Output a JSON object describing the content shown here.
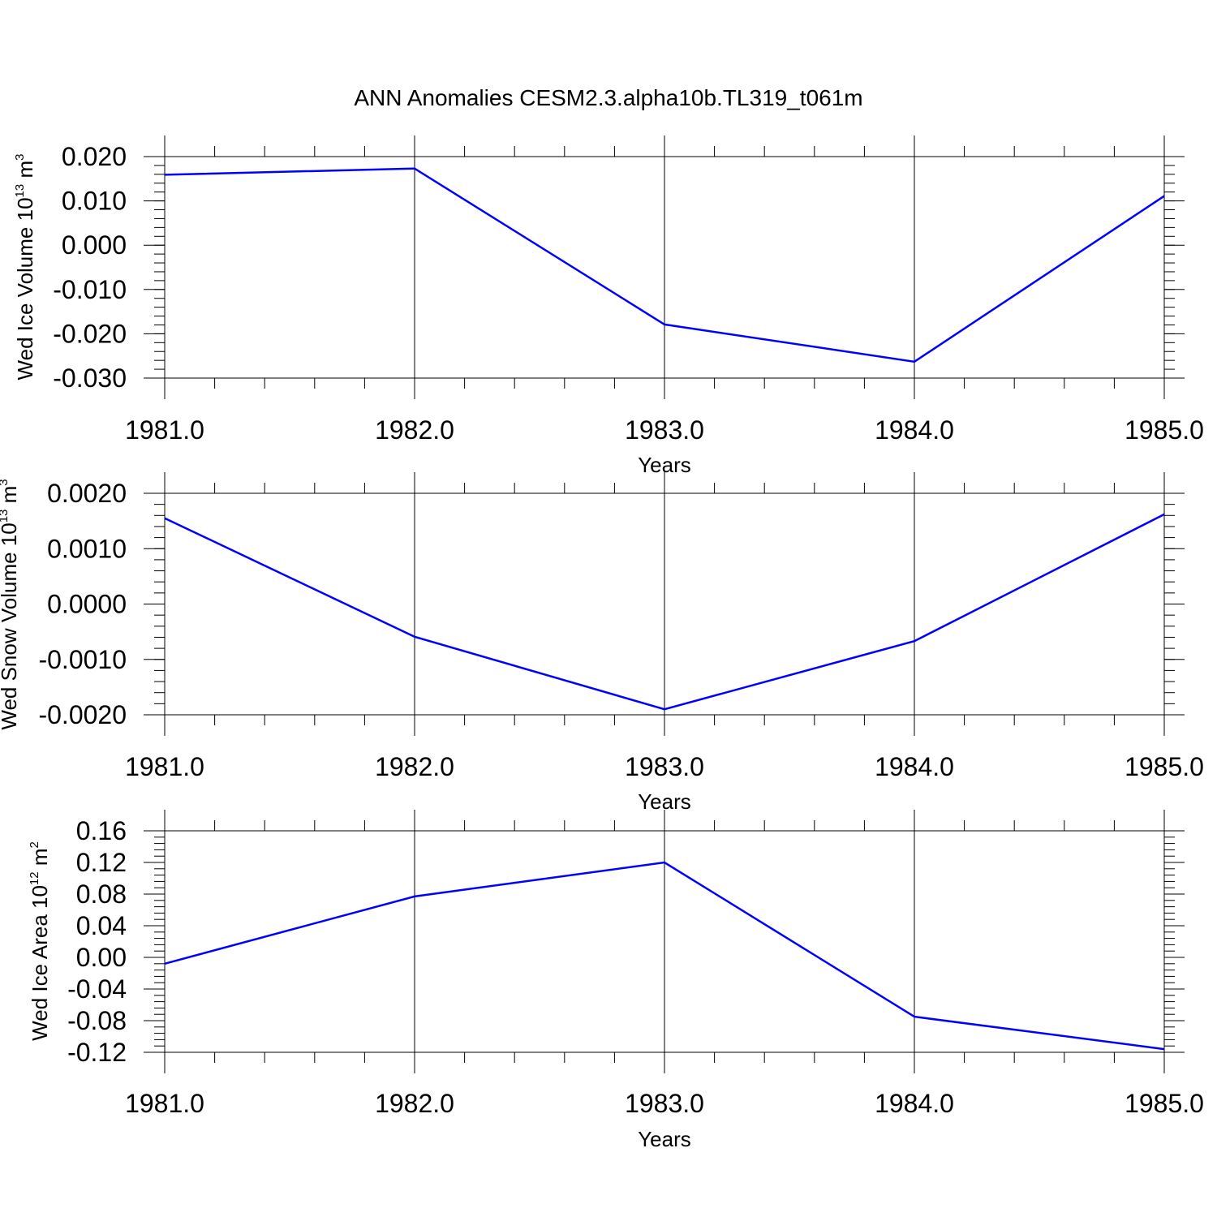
{
  "title": "ANN Anomalies CESM2.3.alpha10b.TL319_t061m",
  "line_color": "#0000ff",
  "chart_data": [
    {
      "type": "line",
      "xlabel": "Years",
      "ylabel": {
        "prefix": "Wed Ice Volume 10",
        "exp": "13",
        "unit": " m",
        "unit_exp": "3"
      },
      "xlim": [
        1981.0,
        1985.0
      ],
      "ylim": [
        -0.03,
        0.02
      ],
      "x_ticks": [
        "1981.0",
        "1982.0",
        "1983.0",
        "1984.0",
        "1985.0"
      ],
      "y_ticks": [
        {
          "value": 0.02,
          "label": "0.020"
        },
        {
          "value": 0.01,
          "label": "0.010"
        },
        {
          "value": 0.0,
          "label": "0.000"
        },
        {
          "value": -0.01,
          "label": "-0.010"
        },
        {
          "value": -0.02,
          "label": "-0.020"
        },
        {
          "value": -0.03,
          "label": "-0.030"
        }
      ],
      "y_minor_step": 0.002,
      "x": [
        1981,
        1982,
        1983,
        1984,
        1985
      ],
      "y": [
        0.0159,
        0.0173,
        -0.0179,
        -0.0263,
        0.0111
      ]
    },
    {
      "type": "line",
      "xlabel": "Years",
      "ylabel": {
        "prefix": "Wed Snow Volume 10",
        "exp": "13",
        "unit": " m",
        "unit_exp": "3"
      },
      "xlim": [
        1981.0,
        1985.0
      ],
      "ylim": [
        -0.002,
        0.002
      ],
      "x_ticks": [
        "1981.0",
        "1982.0",
        "1983.0",
        "1984.0",
        "1985.0"
      ],
      "y_ticks": [
        {
          "value": 0.002,
          "label": "0.0020"
        },
        {
          "value": 0.001,
          "label": "0.0010"
        },
        {
          "value": 0.0,
          "label": "0.0000"
        },
        {
          "value": -0.001,
          "label": "-0.0010"
        },
        {
          "value": -0.002,
          "label": "-0.0020"
        }
      ],
      "y_minor_step": 0.0002,
      "x": [
        1981,
        1982,
        1983,
        1984,
        1985
      ],
      "y": [
        0.00155,
        -0.00059,
        -0.0019,
        -0.00067,
        0.00162
      ]
    },
    {
      "type": "line",
      "xlabel": "Years",
      "ylabel": {
        "prefix": "Wed Ice Area 10",
        "exp": "12",
        "unit": " m",
        "unit_exp": "2"
      },
      "xlim": [
        1981.0,
        1985.0
      ],
      "ylim": [
        -0.12,
        0.16
      ],
      "x_ticks": [
        "1981.0",
        "1982.0",
        "1983.0",
        "1984.0",
        "1985.0"
      ],
      "y_ticks": [
        {
          "value": 0.16,
          "label": "0.16"
        },
        {
          "value": 0.12,
          "label": "0.12"
        },
        {
          "value": 0.08,
          "label": "0.08"
        },
        {
          "value": 0.04,
          "label": "0.04"
        },
        {
          "value": 0.0,
          "label": "0.00"
        },
        {
          "value": -0.04,
          "label": "-0.04"
        },
        {
          "value": -0.08,
          "label": "-0.08"
        },
        {
          "value": -0.12,
          "label": "-0.12"
        }
      ],
      "y_minor_step": 0.008,
      "x": [
        1981,
        1982,
        1983,
        1984,
        1985
      ],
      "y": [
        -0.008,
        0.077,
        0.12,
        -0.075,
        -0.116
      ]
    }
  ]
}
